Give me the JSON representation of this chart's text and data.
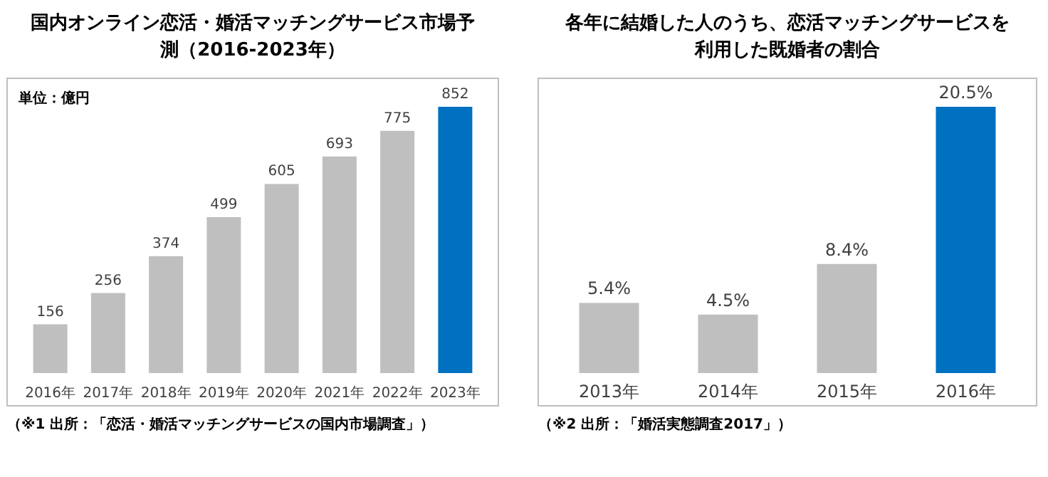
{
  "chart_data": [
    {
      "type": "bar",
      "title": "国内オンライン恋活・婚活マッチングサービス市場予測（2016-2023年）",
      "categories": [
        "2016年",
        "2017年",
        "2018年",
        "2019年",
        "2020年",
        "2021年",
        "2022年",
        "2023年"
      ],
      "values": [
        156,
        256,
        374,
        499,
        605,
        693,
        775,
        852
      ],
      "colors": [
        "#bfbfbf",
        "#bfbfbf",
        "#bfbfbf",
        "#bfbfbf",
        "#bfbfbf",
        "#bfbfbf",
        "#bfbfbf",
        "#0070c0"
      ],
      "data_labels": true,
      "annotations": [
        "単位：億円",
        "（※1 出所：「恋活・婚活マッチングサービスの国内市場調査」）"
      ]
    },
    {
      "type": "bar",
      "title": "各年に結婚した人のうち、恋活マッチングサービスを利用した既婚者の割合",
      "categories": [
        "2013年",
        "2014年",
        "2015年",
        "2016年"
      ],
      "values": [
        5.4,
        4.5,
        8.4,
        20.5
      ],
      "colors": [
        "#bfbfbf",
        "#bfbfbf",
        "#bfbfbf",
        "#0070c0"
      ],
      "value_labels": [
        "5.4%",
        "4.5%",
        "8.4%",
        "20.5%"
      ],
      "annotations": [
        "（※2 出所：「婚活実態調査2017」）"
      ]
    }
  ]
}
